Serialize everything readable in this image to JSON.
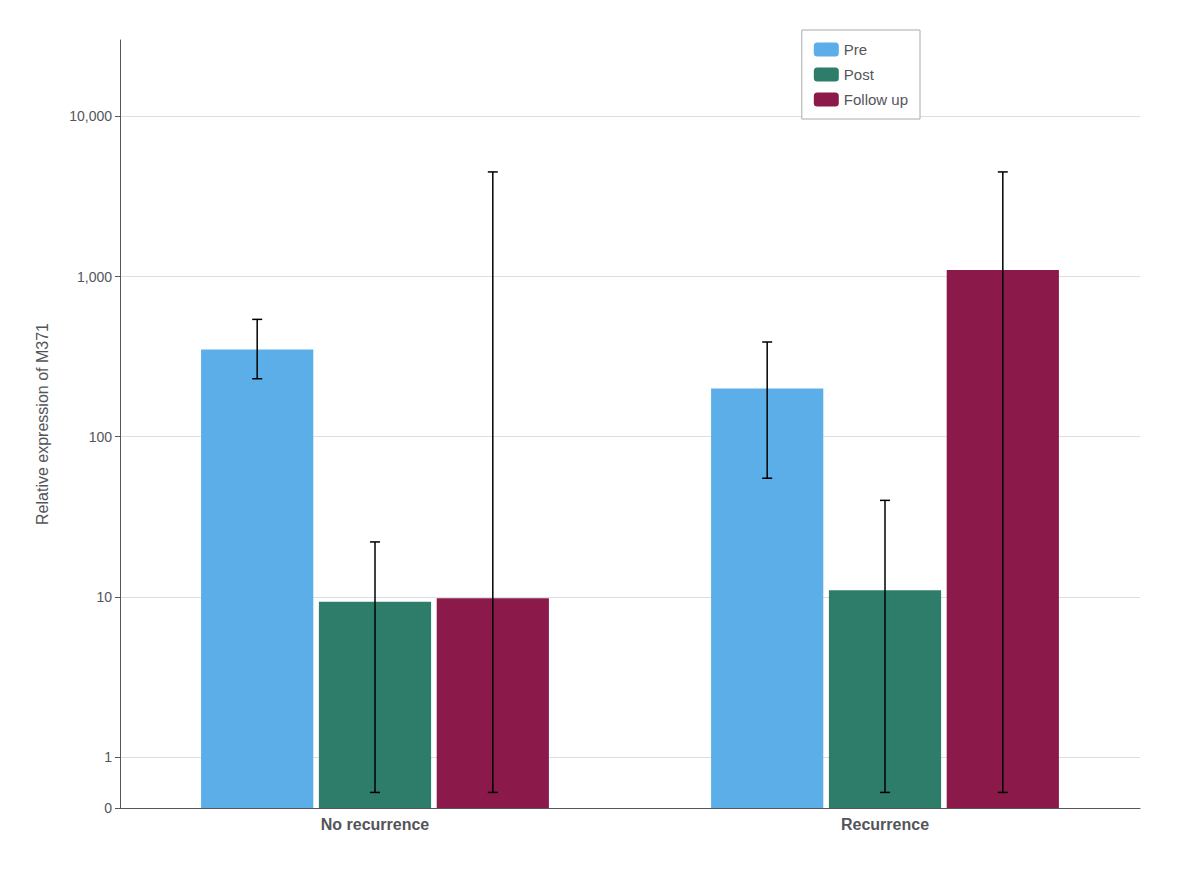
{
  "chart_data": {
    "type": "bar",
    "log": "y",
    "grid": true,
    "legend": "upper right",
    "categories": [
      "No recurrence",
      "Recurrence"
    ],
    "ylabel": "Relative expression of M371",
    "ylim": [
      0,
      30000
    ],
    "yticks": [
      0,
      1,
      10,
      100,
      {
        "value": 1000,
        "label": "1,000"
      },
      {
        "value": 10000,
        "label": "10,000"
      }
    ],
    "series": [
      {
        "name": "Pre",
        "color": "#5BAEE8",
        "values": [
          350,
          200
        ],
        "error_low": [
          230,
          55
        ],
        "error_high": [
          540,
          390
        ]
      },
      {
        "name": "Post",
        "color": "#2E7D6B",
        "values": [
          9.3,
          11
        ],
        "error_low": [
          0.35,
          0.35
        ],
        "error_high": [
          22,
          40
        ]
      },
      {
        "name": "Follow up",
        "color": "#8B1A4A",
        "values": [
          9.8,
          1100
        ],
        "error_low": [
          0.35,
          0.35
        ],
        "error_high": [
          4500,
          4500
        ]
      }
    ]
  }
}
